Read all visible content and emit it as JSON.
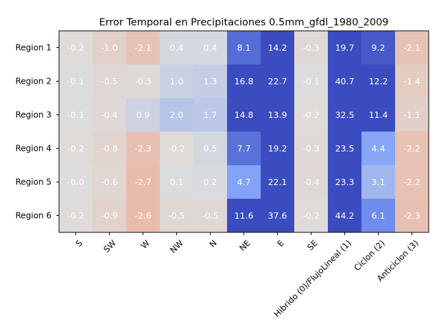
{
  "chart_data": {
    "type": "heatmap",
    "title": "Error Temporal en Precipitaciones 0.5mm_gfdl_1980_2009",
    "columns": [
      "S",
      "SW",
      "W",
      "NW",
      "N",
      "NE",
      "E",
      "SE",
      "Hibrido (0)/FlujoLineal (1)",
      "Ciclon (2)",
      "Anticiclon (3)"
    ],
    "rows": [
      "Region 1",
      "Region 2",
      "Region 3",
      "Region 4",
      "Region 5",
      "Region 6"
    ],
    "values": [
      [
        -0.2,
        -1.0,
        -2.1,
        0.4,
        0.4,
        8.1,
        14.2,
        -0.3,
        19.7,
        9.2,
        -2.1
      ],
      [
        -0.1,
        -0.5,
        -0.3,
        1.0,
        1.3,
        16.8,
        22.7,
        -0.1,
        40.7,
        12.2,
        -1.4
      ],
      [
        -0.1,
        -0.4,
        0.9,
        2.0,
        1.7,
        14.8,
        13.9,
        -0.2,
        32.5,
        11.4,
        -1.1
      ],
      [
        -0.2,
        -0.8,
        -2.3,
        -0.2,
        0.5,
        7.7,
        19.2,
        -0.3,
        23.5,
        4.4,
        -2.2
      ],
      [
        -0.0,
        -0.6,
        -2.7,
        0.1,
        0.2,
        4.7,
        22.1,
        -0.4,
        23.3,
        3.1,
        -2.2
      ],
      [
        -0.2,
        -0.9,
        -2.6,
        -0.5,
        -0.5,
        11.6,
        37.6,
        -0.2,
        44.2,
        6.1,
        -2.3
      ]
    ],
    "value_labels": [
      [
        "-0.2",
        "-1.0",
        "-2.1",
        "0.4",
        "0.4",
        "8.1",
        "14.2",
        "-0.3",
        "19.7",
        "9.2",
        "-2.1"
      ],
      [
        "-0.1",
        "-0.5",
        "-0.3",
        "1.0",
        "1.3",
        "16.8",
        "22.7",
        "-0.1",
        "40.7",
        "12.2",
        "-1.4"
      ],
      [
        "-0.1",
        "-0.4",
        "0.9",
        "2.0",
        "1.7",
        "14.8",
        "13.9",
        "-0.2",
        "32.5",
        "11.4",
        "-1.1"
      ],
      [
        "-0.2",
        "-0.8",
        "-2.3",
        "-0.2",
        "0.5",
        "7.7",
        "19.2",
        "-0.3",
        "23.5",
        "4.4",
        "-2.2"
      ],
      [
        "-0.0",
        "-0.6",
        "-2.7",
        "0.1",
        "0.2",
        "4.7",
        "22.1",
        "-0.4",
        "23.3",
        "3.1",
        "-2.2"
      ],
      [
        "-0.2",
        "-0.9",
        "-2.6",
        "-0.5",
        "-0.5",
        "11.6",
        "37.6",
        "-0.2",
        "44.2",
        "6.1",
        "-2.3"
      ]
    ],
    "colormap": "coolwarm_r",
    "color_range": [
      -10,
      10
    ],
    "grid": false,
    "colors": {
      "negative_max": "#b40426",
      "zero": "#dddddd",
      "positive_max": "#3b4cc0"
    }
  }
}
